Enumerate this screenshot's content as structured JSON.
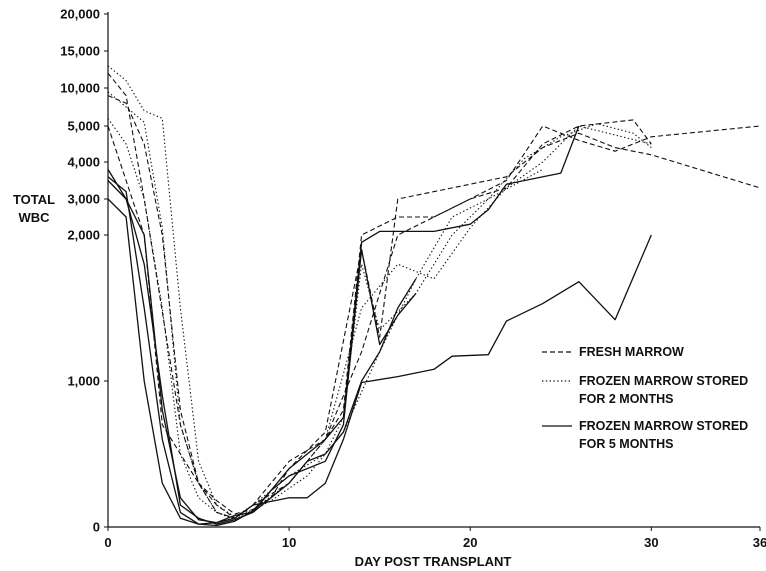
{
  "chart_data": {
    "type": "line",
    "title": "",
    "xlabel": "DAY POST TRANSPLANT",
    "ylabel": [
      "TOTAL",
      "WBC"
    ],
    "xlim": [
      0,
      36
    ],
    "x_ticks": [
      0,
      10,
      20,
      30,
      36
    ],
    "y_ticks": [
      {
        "value": 0,
        "label": "0"
      },
      {
        "value": 1000,
        "label": "1,000"
      },
      {
        "value": 2000,
        "label": "2,000"
      },
      {
        "value": 3000,
        "label": "3,000"
      },
      {
        "value": 4000,
        "label": "4,000"
      },
      {
        "value": 5000,
        "label": "5,000"
      },
      {
        "value": 10000,
        "label": "10,000"
      },
      {
        "value": 15000,
        "label": "15,000"
      },
      {
        "value": 20000,
        "label": "20,000"
      }
    ],
    "grid": false,
    "legend_position": "right",
    "legend": [
      {
        "style": "dashed",
        "lines": [
          "FRESH MARROW"
        ]
      },
      {
        "style": "dotted",
        "lines": [
          "FROZEN MARROW STORED",
          "FOR 2 MONTHS"
        ]
      },
      {
        "style": "solid",
        "lines": [
          "FROZEN MARROW STORED",
          "FOR 5 MONTHS"
        ]
      }
    ],
    "series": [
      {
        "style": "dashed",
        "points": [
          [
            0,
            12000
          ],
          [
            1,
            9000
          ],
          [
            2,
            3000
          ],
          [
            4,
            700
          ],
          [
            5,
            300
          ],
          [
            6,
            150
          ],
          [
            7,
            60
          ],
          [
            8,
            150
          ],
          [
            9,
            300
          ],
          [
            10,
            450
          ],
          [
            12,
            600
          ],
          [
            13,
            800
          ],
          [
            14,
            2000
          ],
          [
            16,
            2500
          ],
          [
            18,
            2500
          ],
          [
            20,
            3000
          ],
          [
            22,
            3500
          ],
          [
            24,
            5000
          ],
          [
            26,
            4600
          ],
          [
            28,
            4300
          ],
          [
            30,
            4700
          ],
          [
            36,
            5000
          ]
        ]
      },
      {
        "style": "dashed",
        "points": [
          [
            0,
            9000
          ],
          [
            1,
            8000
          ],
          [
            2,
            4500
          ],
          [
            3,
            2000
          ],
          [
            4,
            800
          ],
          [
            5,
            300
          ],
          [
            6,
            180
          ],
          [
            7,
            90
          ],
          [
            8,
            120
          ],
          [
            9,
            200
          ],
          [
            10,
            400
          ],
          [
            12,
            650
          ],
          [
            14,
            1900
          ],
          [
            15,
            1300
          ],
          [
            16,
            3000
          ],
          [
            18,
            3200
          ],
          [
            20,
            3400
          ],
          [
            22,
            3600
          ],
          [
            24,
            4400
          ],
          [
            26,
            4800
          ],
          [
            28,
            4400
          ],
          [
            30,
            4200
          ],
          [
            36,
            3300
          ]
        ]
      },
      {
        "style": "dashed",
        "points": [
          [
            0,
            5000
          ],
          [
            1,
            3500
          ],
          [
            2,
            2000
          ],
          [
            3,
            700
          ],
          [
            5,
            300
          ],
          [
            6,
            100
          ],
          [
            7,
            60
          ],
          [
            8,
            150
          ],
          [
            10,
            300
          ],
          [
            12,
            600
          ],
          [
            14,
            1200
          ],
          [
            16,
            2000
          ],
          [
            20,
            3000
          ],
          [
            22,
            3300
          ],
          [
            24,
            4500
          ],
          [
            26,
            5000
          ],
          [
            29,
            5800
          ],
          [
            30,
            4500
          ]
        ]
      },
      {
        "style": "dotted",
        "points": [
          [
            0,
            13000
          ],
          [
            1,
            11000
          ],
          [
            2,
            7000
          ],
          [
            3,
            6000
          ],
          [
            4,
            1500
          ],
          [
            5,
            450
          ],
          [
            6,
            150
          ],
          [
            7,
            70
          ],
          [
            8,
            150
          ],
          [
            10,
            350
          ],
          [
            12,
            500
          ],
          [
            13,
            750
          ],
          [
            14,
            1800
          ],
          [
            15,
            1350
          ],
          [
            17,
            1600
          ],
          [
            19,
            2000
          ],
          [
            21,
            3000
          ],
          [
            23,
            4100
          ],
          [
            25,
            4700
          ],
          [
            27,
            5300
          ],
          [
            29,
            4800
          ],
          [
            30,
            4400
          ]
        ]
      },
      {
        "style": "dotted",
        "points": [
          [
            0,
            9500
          ],
          [
            1,
            7500
          ],
          [
            2,
            5500
          ],
          [
            3,
            2200
          ],
          [
            4,
            700
          ],
          [
            5,
            300
          ],
          [
            6,
            100
          ],
          [
            7,
            60
          ],
          [
            8,
            120
          ],
          [
            10,
            300
          ],
          [
            12,
            600
          ],
          [
            14,
            1500
          ],
          [
            16,
            1800
          ],
          [
            18,
            1700
          ],
          [
            20,
            2200
          ],
          [
            22,
            3300
          ],
          [
            24,
            4000
          ],
          [
            26,
            5000
          ],
          [
            30,
            4500
          ]
        ]
      },
      {
        "style": "dotted",
        "points": [
          [
            0,
            6000
          ],
          [
            1,
            4500
          ],
          [
            2,
            3000
          ],
          [
            3,
            1500
          ],
          [
            4,
            500
          ],
          [
            5,
            200
          ],
          [
            6,
            100
          ],
          [
            7,
            50
          ],
          [
            9,
            180
          ],
          [
            11,
            350
          ],
          [
            13,
            650
          ],
          [
            15,
            1200
          ],
          [
            17,
            1700
          ],
          [
            19,
            2500
          ],
          [
            21,
            3000
          ],
          [
            24,
            3800
          ]
        ]
      },
      {
        "style": "solid",
        "points": [
          [
            0,
            3800
          ],
          [
            1,
            3000
          ],
          [
            2,
            1800
          ],
          [
            3,
            900
          ],
          [
            4,
            150
          ],
          [
            5,
            60
          ],
          [
            6,
            20
          ],
          [
            7,
            50
          ],
          [
            8,
            100
          ],
          [
            10,
            400
          ],
          [
            12,
            600
          ],
          [
            13,
            750
          ],
          [
            14,
            1950
          ],
          [
            15,
            2100
          ],
          [
            18,
            2100
          ],
          [
            20,
            2300
          ],
          [
            21,
            2700
          ],
          [
            22,
            3400
          ],
          [
            25,
            3700
          ],
          [
            26,
            5000
          ]
        ]
      },
      {
        "style": "solid",
        "points": [
          [
            0,
            3600
          ],
          [
            1,
            3200
          ],
          [
            2,
            1500
          ],
          [
            3,
            600
          ],
          [
            4,
            100
          ],
          [
            5,
            20
          ],
          [
            6,
            10
          ],
          [
            7,
            40
          ],
          [
            8,
            110
          ],
          [
            9,
            250
          ],
          [
            10,
            350
          ],
          [
            12,
            450
          ],
          [
            13,
            700
          ],
          [
            14,
            1900
          ],
          [
            15,
            1250
          ],
          [
            16,
            1450
          ],
          [
            17,
            1600
          ]
        ]
      },
      {
        "style": "solid",
        "points": [
          [
            0,
            3500
          ],
          [
            1,
            3000
          ],
          [
            2,
            2000
          ],
          [
            3,
            800
          ],
          [
            4,
            200
          ],
          [
            5,
            50
          ],
          [
            6,
            30
          ],
          [
            7,
            60
          ],
          [
            8,
            150
          ],
          [
            10,
            200
          ],
          [
            11,
            200
          ],
          [
            12,
            300
          ],
          [
            13,
            600
          ],
          [
            14,
            990
          ],
          [
            16,
            1030
          ],
          [
            18,
            1080
          ],
          [
            19,
            1170
          ],
          [
            21,
            1180
          ],
          [
            22,
            1410
          ],
          [
            24,
            1530
          ],
          [
            26,
            1680
          ],
          [
            27,
            1550
          ],
          [
            28,
            1420
          ],
          [
            30,
            2000
          ]
        ]
      },
      {
        "style": "solid",
        "points": [
          [
            0,
            3000
          ],
          [
            1,
            2500
          ],
          [
            2,
            1000
          ],
          [
            3,
            300
          ],
          [
            4,
            60
          ],
          [
            5,
            20
          ],
          [
            6,
            30
          ],
          [
            7,
            80
          ],
          [
            8,
            100
          ],
          [
            9,
            200
          ],
          [
            10,
            300
          ],
          [
            11,
            450
          ],
          [
            12,
            500
          ],
          [
            13,
            650
          ],
          [
            14,
            1000
          ],
          [
            15,
            1200
          ],
          [
            16,
            1500
          ],
          [
            17,
            1700
          ]
        ]
      }
    ]
  }
}
